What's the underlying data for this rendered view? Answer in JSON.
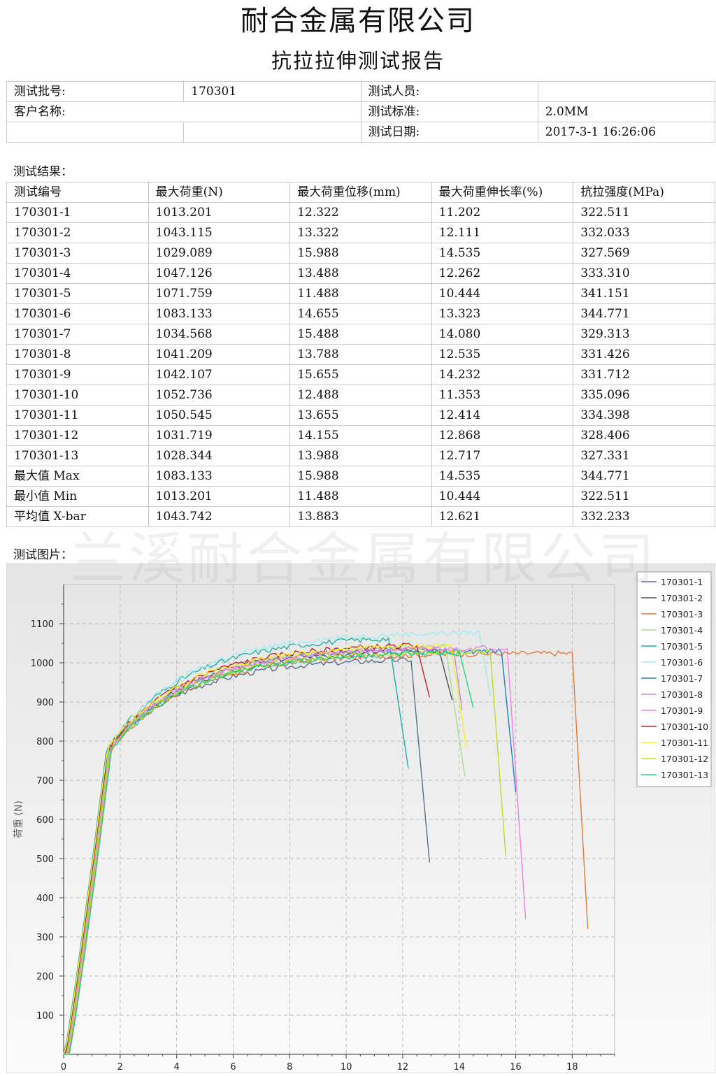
{
  "header": {
    "company": "耐合金属有限公司",
    "report_title": "抗拉拉伸测试报告"
  },
  "info": {
    "batch_label": "测试批号:",
    "batch_value": "170301",
    "tester_label": "测试人员:",
    "tester_value": "",
    "client_label": "客户名称:",
    "client_value": "",
    "standard_label": "测试标准:",
    "standard_value": "2.0MM",
    "date_label": "测试日期:",
    "date_value": "2017-3-1 16:26:06"
  },
  "results": {
    "section_label": "测试结果：",
    "headers": [
      "测试编号",
      "最大荷重(N)",
      "最大荷重位移(mm)",
      "最大荷重伸长率(%)",
      "抗拉强度(MPa)"
    ],
    "rows": [
      [
        "170301-1",
        "1013.201",
        "12.322",
        "11.202",
        "322.511"
      ],
      [
        "170301-2",
        "1043.115",
        "13.322",
        "12.111",
        "332.033"
      ],
      [
        "170301-3",
        "1029.089",
        "15.988",
        "14.535",
        "327.569"
      ],
      [
        "170301-4",
        "1047.126",
        "13.488",
        "12.262",
        "333.310"
      ],
      [
        "170301-5",
        "1071.759",
        "11.488",
        "10.444",
        "341.151"
      ],
      [
        "170301-6",
        "1083.133",
        "14.655",
        "13.323",
        "344.771"
      ],
      [
        "170301-7",
        "1034.568",
        "15.488",
        "14.080",
        "329.313"
      ],
      [
        "170301-8",
        "1041.209",
        "13.788",
        "12.535",
        "331.426"
      ],
      [
        "170301-9",
        "1042.107",
        "15.655",
        "14.232",
        "331.712"
      ],
      [
        "170301-10",
        "1052.736",
        "12.488",
        "11.353",
        "335.096"
      ],
      [
        "170301-11",
        "1050.545",
        "13.655",
        "12.414",
        "334.398"
      ],
      [
        "170301-12",
        "1031.719",
        "14.155",
        "12.868",
        "328.406"
      ],
      [
        "170301-13",
        "1028.344",
        "13.988",
        "12.717",
        "327.331"
      ],
      [
        "最大值  Max",
        "1083.133",
        "15.988",
        "14.535",
        "344.771"
      ],
      [
        "最小值  Min",
        "1013.201",
        "11.488",
        "10.444",
        "322.511"
      ],
      [
        "平均值  X-bar",
        "1043.742",
        "13.883",
        "12.621",
        "332.233"
      ]
    ]
  },
  "chart_section_label": "测试图片：",
  "watermark": "兰溪耐合金属有限公司",
  "chart_data": {
    "type": "line",
    "title": "",
    "xlabel": "",
    "ylabel": "荷重 (N)",
    "xlim": [
      0,
      19.5
    ],
    "ylim": [
      0,
      1200
    ],
    "xticks": [
      0,
      2,
      4,
      6,
      8,
      10,
      12,
      14,
      16,
      18
    ],
    "yticks": [
      100,
      200,
      300,
      400,
      500,
      600,
      700,
      800,
      900,
      1000,
      1100
    ],
    "grid": true,
    "legend_position": "top-right",
    "series": [
      {
        "name": "170301-1",
        "color": "#5a6d8a",
        "shift": 0.05,
        "plateau": 1013,
        "break_x": 12.35,
        "drop_x": 12.95,
        "drop_y": 490
      },
      {
        "name": "170301-2",
        "color": "#5a4a4a",
        "shift": 0.08,
        "plateau": 1040,
        "break_x": 13.3,
        "drop_x": 13.75,
        "drop_y": 905
      },
      {
        "name": "170301-3",
        "color": "#e07a3a",
        "shift": 0.18,
        "plateau": 1025,
        "break_x": 18.05,
        "drop_x": 18.55,
        "drop_y": 320
      },
      {
        "name": "170301-4",
        "color": "#a8e08a",
        "shift": 0.1,
        "plateau": 1045,
        "break_x": 13.5,
        "drop_x": 14.2,
        "drop_y": 710
      },
      {
        "name": "170301-5",
        "color": "#20b0a0",
        "shift": 0.02,
        "plateau": 1070,
        "break_x": 11.55,
        "drop_x": 12.2,
        "drop_y": 730
      },
      {
        "name": "170301-6",
        "color": "#a0ecf4",
        "shift": 0.05,
        "plateau": 1080,
        "break_x": 14.7,
        "drop_x": 15.1,
        "drop_y": 915
      },
      {
        "name": "170301-7",
        "color": "#2080c0",
        "shift": 0.15,
        "plateau": 1032,
        "break_x": 15.5,
        "drop_x": 16.0,
        "drop_y": 670
      },
      {
        "name": "170301-8",
        "color": "#b890dc",
        "shift": 0.12,
        "plateau": 1040,
        "break_x": 13.8,
        "drop_x": 14.1,
        "drop_y": 880
      },
      {
        "name": "170301-9",
        "color": "#f080e0",
        "shift": 0.16,
        "plateau": 1040,
        "break_x": 15.7,
        "drop_x": 16.35,
        "drop_y": 345
      },
      {
        "name": "170301-10",
        "color": "#c02030",
        "shift": 0.06,
        "plateau": 1050,
        "break_x": 12.5,
        "drop_x": 12.95,
        "drop_y": 912
      },
      {
        "name": "170301-11",
        "color": "#f8f020",
        "shift": 0.04,
        "plateau": 1048,
        "break_x": 13.7,
        "drop_x": 14.25,
        "drop_y": 785
      },
      {
        "name": "170301-12",
        "color": "#b8e020",
        "shift": 0.14,
        "plateau": 1030,
        "break_x": 15.1,
        "drop_x": 15.65,
        "drop_y": 505
      },
      {
        "name": "170301-13",
        "color": "#28d480",
        "shift": 0.2,
        "plateau": 1027,
        "break_x": 14.0,
        "drop_x": 14.5,
        "drop_y": 885
      }
    ]
  }
}
